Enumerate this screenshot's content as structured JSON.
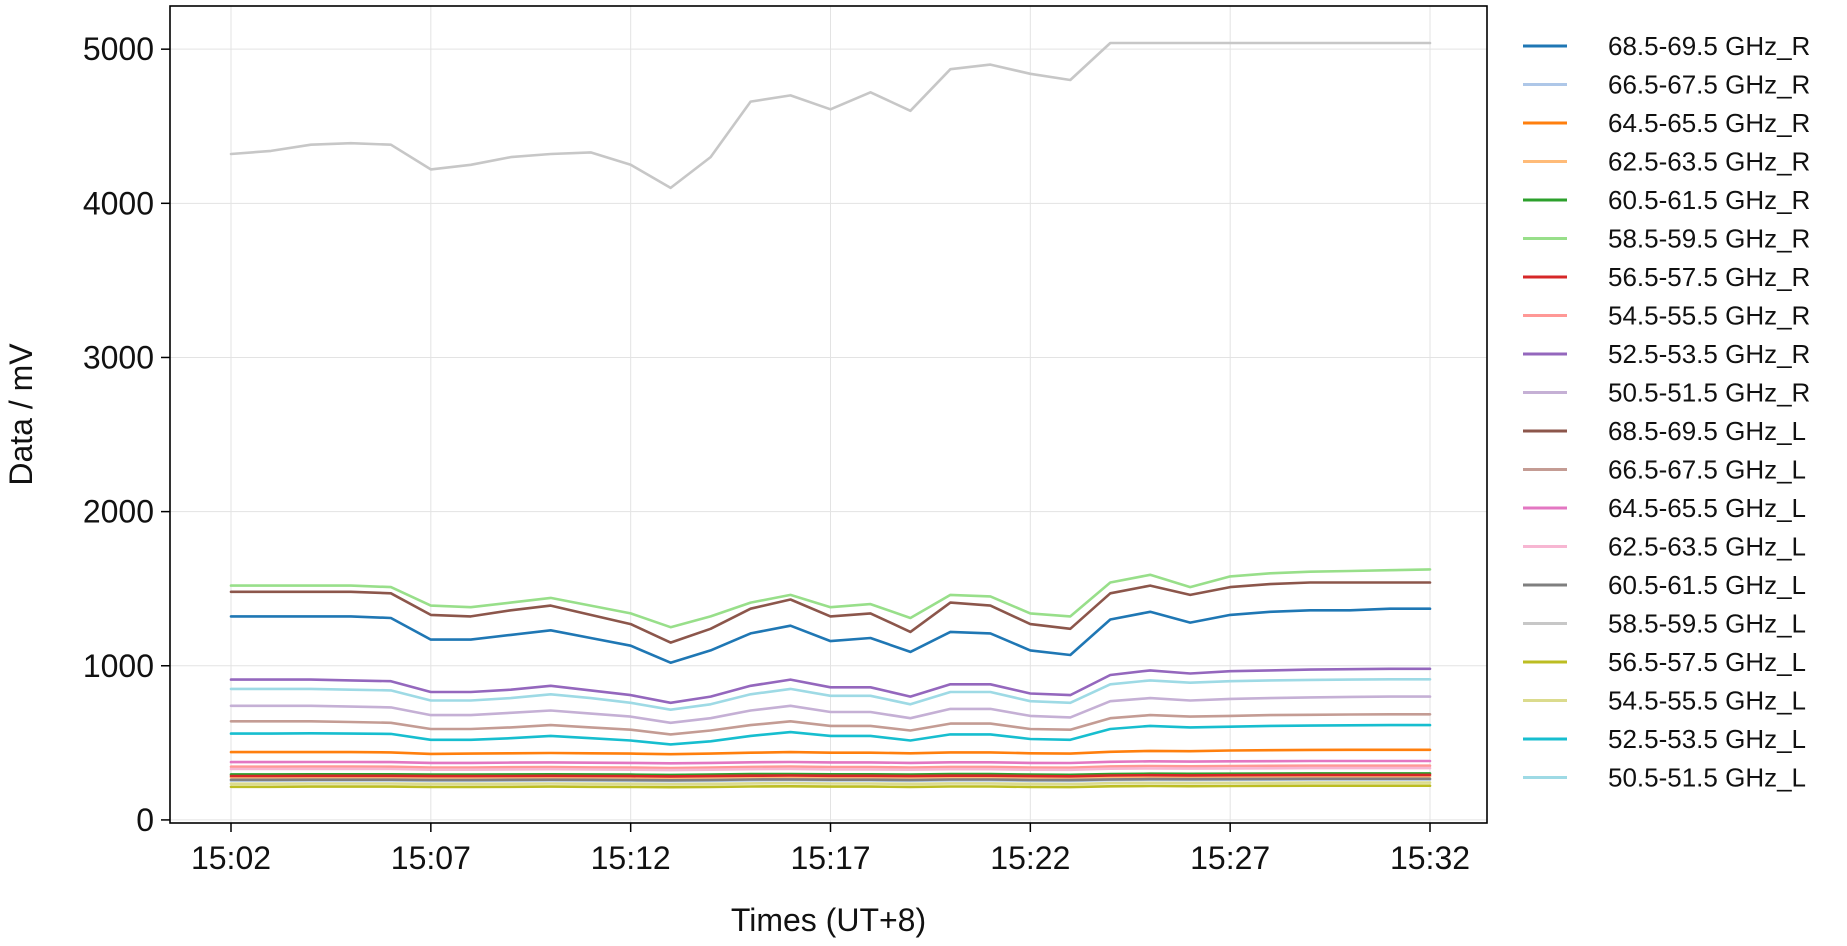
{
  "chart_data": {
    "type": "line",
    "title": "",
    "xlabel": "Times (UT+8)",
    "ylabel": "Data / mV",
    "x_range": [
      "15:02",
      "15:32"
    ],
    "x_ticks": [
      "15:02",
      "15:07",
      "15:12",
      "15:17",
      "15:22",
      "15:27",
      "15:32"
    ],
    "ylim": [
      -20,
      5280
    ],
    "y_ticks": [
      0,
      1000,
      2000,
      3000,
      4000,
      5000
    ],
    "grid": true,
    "legend_position": "outside-right",
    "shared_x": [
      "15:02",
      "15:03",
      "15:04",
      "15:05",
      "15:06",
      "15:07",
      "15:08",
      "15:09",
      "15:10",
      "15:11",
      "15:12",
      "15:13",
      "15:14",
      "15:15",
      "15:16",
      "15:17",
      "15:18",
      "15:19",
      "15:20",
      "15:21",
      "15:22",
      "15:23",
      "15:24",
      "15:25",
      "15:26",
      "15:27",
      "15:28",
      "15:29",
      "15:30",
      "15:31",
      "15:32"
    ],
    "series": [
      {
        "name": "68.5-69.5 GHz_R",
        "color": "#1f77b4",
        "values": [
          1320,
          1320,
          1320,
          1320,
          1310,
          1170,
          1170,
          1200,
          1230,
          1180,
          1130,
          1020,
          1100,
          1210,
          1260,
          1160,
          1180,
          1090,
          1220,
          1210,
          1100,
          1070,
          1300,
          1350,
          1280,
          1330,
          1350,
          1360,
          1360,
          1370,
          1370
        ]
      },
      {
        "name": "66.5-67.5 GHz_R",
        "color": "#aec7e8",
        "values": [
          255,
          255,
          256,
          256,
          256,
          254,
          254,
          255,
          256,
          255,
          254,
          252,
          254,
          257,
          258,
          256,
          256,
          254,
          257,
          257,
          254,
          253,
          258,
          260,
          259,
          260,
          261,
          262,
          262,
          262,
          262
        ]
      },
      {
        "name": "64.5-65.5 GHz_R",
        "color": "#ff7f0e",
        "values": [
          440,
          440,
          440,
          440,
          438,
          428,
          430,
          432,
          434,
          432,
          430,
          426,
          430,
          436,
          440,
          436,
          436,
          432,
          438,
          438,
          432,
          430,
          442,
          448,
          446,
          450,
          452,
          454,
          455,
          455,
          455
        ]
      },
      {
        "name": "62.5-63.5 GHz_R",
        "color": "#ffbb78",
        "values": [
          275,
          275,
          276,
          276,
          276,
          274,
          274,
          275,
          276,
          275,
          274,
          272,
          274,
          277,
          278,
          276,
          276,
          274,
          277,
          277,
          274,
          273,
          278,
          280,
          279,
          280,
          281,
          282,
          282,
          282,
          282
        ]
      },
      {
        "name": "60.5-61.5 GHz_R",
        "color": "#2ca02c",
        "values": [
          295,
          295,
          296,
          296,
          296,
          294,
          294,
          295,
          296,
          295,
          294,
          292,
          294,
          297,
          298,
          296,
          296,
          294,
          297,
          297,
          294,
          293,
          298,
          300,
          299,
          300,
          301,
          302,
          302,
          302,
          302
        ]
      },
      {
        "name": "58.5-59.5 GHz_R",
        "color": "#98df8a",
        "values": [
          1520,
          1520,
          1520,
          1520,
          1510,
          1390,
          1380,
          1410,
          1440,
          1390,
          1340,
          1250,
          1320,
          1410,
          1460,
          1380,
          1400,
          1310,
          1460,
          1450,
          1340,
          1320,
          1540,
          1590,
          1510,
          1580,
          1600,
          1610,
          1615,
          1620,
          1625
        ]
      },
      {
        "name": "56.5-57.5 GHz_R",
        "color": "#d62728",
        "values": [
          285,
          285,
          286,
          286,
          286,
          284,
          284,
          285,
          286,
          285,
          284,
          282,
          284,
          287,
          288,
          286,
          286,
          284,
          287,
          287,
          284,
          283,
          288,
          290,
          289,
          290,
          291,
          292,
          292,
          292,
          292
        ]
      },
      {
        "name": "54.5-55.5 GHz_R",
        "color": "#ff9896",
        "values": [
          345,
          345,
          346,
          346,
          345,
          340,
          340,
          342,
          343,
          341,
          340,
          337,
          340,
          344,
          346,
          343,
          343,
          340,
          344,
          344,
          340,
          339,
          347,
          350,
          348,
          350,
          351,
          352,
          352,
          352,
          352
        ]
      },
      {
        "name": "52.5-53.5 GHz_R",
        "color": "#9467bd",
        "values": [
          910,
          910,
          910,
          905,
          900,
          830,
          830,
          845,
          870,
          840,
          810,
          760,
          800,
          870,
          910,
          860,
          860,
          800,
          880,
          880,
          820,
          810,
          940,
          970,
          950,
          965,
          970,
          975,
          978,
          980,
          980
        ]
      },
      {
        "name": "50.5-51.5 GHz_R",
        "color": "#c5b0d5",
        "values": [
          740,
          740,
          740,
          735,
          730,
          680,
          680,
          695,
          710,
          690,
          670,
          630,
          660,
          710,
          740,
          700,
          700,
          660,
          720,
          720,
          675,
          665,
          770,
          790,
          775,
          785,
          790,
          795,
          798,
          800,
          800
        ]
      },
      {
        "name": "68.5-69.5 GHz_L",
        "color": "#8c564b",
        "values": [
          1480,
          1480,
          1480,
          1480,
          1470,
          1330,
          1320,
          1360,
          1390,
          1330,
          1270,
          1150,
          1240,
          1370,
          1430,
          1320,
          1340,
          1220,
          1410,
          1390,
          1270,
          1240,
          1470,
          1520,
          1460,
          1510,
          1530,
          1540,
          1540,
          1540,
          1540
        ]
      },
      {
        "name": "66.5-67.5 GHz_L",
        "color": "#c49c94",
        "values": [
          640,
          640,
          640,
          635,
          630,
          590,
          590,
          600,
          615,
          600,
          585,
          555,
          580,
          615,
          640,
          610,
          610,
          580,
          625,
          625,
          590,
          585,
          660,
          680,
          670,
          675,
          680,
          682,
          684,
          685,
          685
        ]
      },
      {
        "name": "64.5-65.5 GHz_L",
        "color": "#e377c2",
        "values": [
          375,
          375,
          376,
          376,
          375,
          370,
          370,
          372,
          373,
          371,
          370,
          367,
          370,
          374,
          376,
          373,
          373,
          370,
          374,
          374,
          370,
          369,
          377,
          380,
          378,
          380,
          381,
          382,
          382,
          382,
          382
        ]
      },
      {
        "name": "62.5-63.5 GHz_L",
        "color": "#f7b6d2",
        "values": [
          330,
          330,
          331,
          331,
          330,
          326,
          326,
          328,
          329,
          327,
          326,
          323,
          326,
          329,
          331,
          328,
          328,
          326,
          329,
          329,
          326,
          325,
          332,
          334,
          333,
          334,
          335,
          336,
          336,
          336,
          336
        ]
      },
      {
        "name": "60.5-61.5 GHz_L",
        "color": "#7f7f7f",
        "values": [
          260,
          260,
          261,
          261,
          261,
          259,
          259,
          260,
          261,
          260,
          259,
          257,
          259,
          262,
          263,
          261,
          261,
          259,
          262,
          262,
          259,
          258,
          263,
          265,
          264,
          265,
          266,
          267,
          267,
          267,
          267
        ]
      },
      {
        "name": "58.5-59.5 GHz_L",
        "color": "#c7c7c7",
        "values": [
          4320,
          4340,
          4380,
          4390,
          4380,
          4220,
          4250,
          4300,
          4320,
          4330,
          4250,
          4100,
          4300,
          4660,
          4700,
          4610,
          4720,
          4600,
          4870,
          4900,
          4840,
          4800,
          5040,
          5040,
          5040,
          5040,
          5040,
          5040,
          5040,
          5040,
          5040
        ]
      },
      {
        "name": "56.5-57.5 GHz_L",
        "color": "#bcbd22",
        "values": [
          215,
          215,
          216,
          216,
          216,
          214,
          214,
          215,
          216,
          215,
          214,
          212,
          214,
          217,
          218,
          216,
          216,
          214,
          217,
          217,
          214,
          213,
          218,
          220,
          219,
          220,
          221,
          222,
          222,
          222,
          222
        ]
      },
      {
        "name": "54.5-55.5 GHz_L",
        "color": "#dbdb8d",
        "values": [
          235,
          235,
          236,
          236,
          236,
          234,
          234,
          235,
          236,
          235,
          234,
          232,
          234,
          237,
          238,
          236,
          236,
          234,
          237,
          237,
          234,
          233,
          238,
          240,
          239,
          240,
          241,
          242,
          242,
          242,
          242
        ]
      },
      {
        "name": "52.5-53.5 GHz_L",
        "color": "#17becf",
        "values": [
          560,
          560,
          562,
          560,
          558,
          520,
          520,
          530,
          545,
          530,
          515,
          490,
          510,
          545,
          570,
          545,
          545,
          515,
          555,
          555,
          525,
          520,
          590,
          610,
          600,
          605,
          610,
          612,
          614,
          615,
          615
        ]
      },
      {
        "name": "50.5-51.5 GHz_L",
        "color": "#9edae5",
        "values": [
          850,
          850,
          850,
          845,
          840,
          775,
          775,
          790,
          815,
          790,
          760,
          715,
          750,
          815,
          850,
          805,
          805,
          750,
          830,
          830,
          770,
          760,
          880,
          905,
          890,
          900,
          905,
          908,
          910,
          912,
          912
        ]
      }
    ]
  }
}
